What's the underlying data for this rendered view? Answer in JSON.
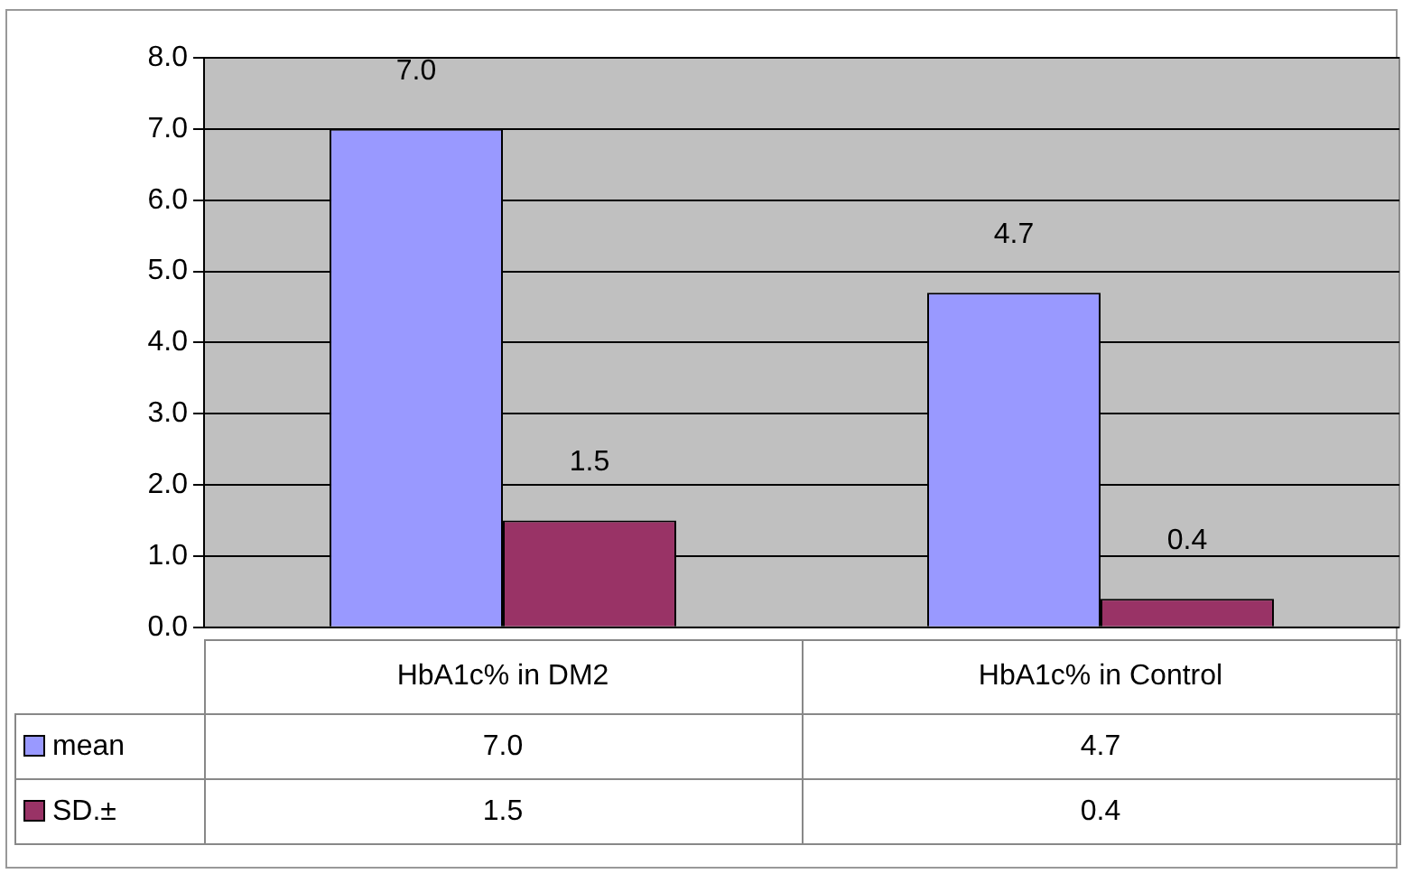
{
  "chart_data": {
    "type": "bar",
    "categories": [
      "HbA1c% in DM2",
      "HbA1c% in Control"
    ],
    "series": [
      {
        "name": "mean",
        "color": "#9999ff",
        "values": [
          7.0,
          4.7
        ],
        "value_labels": [
          "7.0",
          "4.7"
        ]
      },
      {
        "name": "SD.±",
        "color": "#993366",
        "values": [
          1.5,
          0.4
        ],
        "value_labels": [
          "1.5",
          "0.4"
        ]
      }
    ],
    "ylim": [
      0,
      8
    ],
    "yticks": [
      {
        "value": 0,
        "label": "0.0"
      },
      {
        "value": 1,
        "label": "1.0"
      },
      {
        "value": 2,
        "label": "2.0"
      },
      {
        "value": 3,
        "label": "3.0"
      },
      {
        "value": 4,
        "label": "4.0"
      },
      {
        "value": 5,
        "label": "5.0"
      },
      {
        "value": 6,
        "label": "6.0"
      },
      {
        "value": 7,
        "label": "7.0"
      },
      {
        "value": 8,
        "label": "8.0"
      }
    ],
    "grid": "y",
    "legend": "bottom"
  }
}
